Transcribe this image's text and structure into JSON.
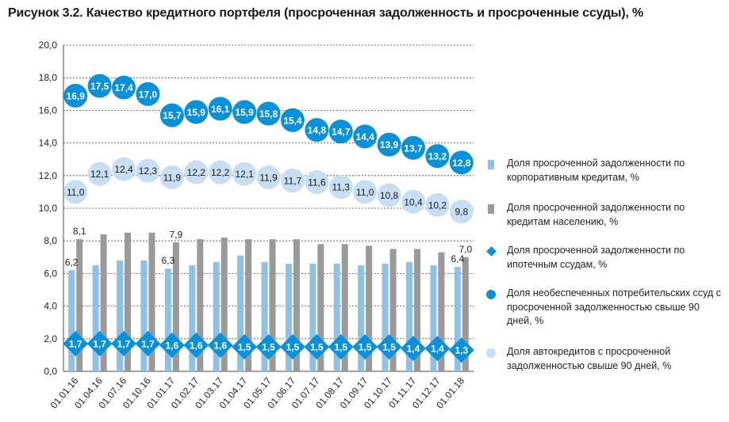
{
  "title": "Рисунок 3.2. Качество кредитного портфеля (просроченная задолженность и просроченные ссуды), %",
  "colors": {
    "corporate": "#8ec1e6",
    "retail": "#9a9a9a",
    "mortgage": "#0a91d9",
    "consumer": "#0a91d9",
    "auto": "#c8def2",
    "axis_text": "#222222",
    "grid": "#444444"
  },
  "legend": {
    "items": [
      {
        "label": "Доля просроченной задолженности по корпоративным кредитам, %",
        "marker": "bar",
        "color": "#8ec1e6"
      },
      {
        "label": "Доля просроченной задолженности по кредитам населению, %",
        "marker": "bar",
        "color": "#9a9a9a"
      },
      {
        "label": "Доля просроченной задолженности по ипотечным ссудам, %",
        "marker": "diamond",
        "color": "#0a91d9"
      },
      {
        "label": "Доля необеспеченных потребительских ссуд с просроченной задолженностью свыше 90 дней, %",
        "marker": "circle",
        "color": "#0a91d9"
      },
      {
        "label": "Доля автокредитов с просроченной задолженностью свыше 90 дней, %",
        "marker": "circle",
        "color": "#c8def2"
      }
    ]
  },
  "chart_data": {
    "type": "bar",
    "title": "Рисунок 3.2. Качество кредитного портфеля (просроченная задолженность и просроченные ссуды), %",
    "categories": [
      "01.01.16",
      "01.04.16",
      "01.07.16",
      "01.10.16",
      "01.01.17",
      "01.02.17",
      "01.03.17",
      "01.04.17",
      "01.05.17",
      "01.06.17",
      "01.07.17",
      "01.08.17",
      "01.09.17",
      "01.10.17",
      "01.11.17",
      "01.12.17",
      "01.01.18"
    ],
    "y_ticks": [
      "0,0",
      "2,0",
      "4,0",
      "6,0",
      "8,0",
      "10,0",
      "12,0",
      "14,0",
      "16,0",
      "18,0",
      "20,0"
    ],
    "ylim": [
      0,
      20
    ],
    "grid": true,
    "legend_position": "right",
    "series": [
      {
        "name": "Доля просроченной задолженности по корпоративным кредитам, %",
        "kind": "bar",
        "values": [
          6.2,
          6.5,
          6.8,
          6.8,
          6.3,
          6.5,
          6.7,
          7.1,
          6.7,
          6.6,
          6.6,
          6.6,
          6.5,
          6.6,
          6.7,
          6.5,
          6.4
        ],
        "labels": [
          "6,2",
          "",
          "",
          "",
          "6,3",
          "",
          "",
          "",
          "",
          "",
          "",
          "",
          "",
          "",
          "",
          "",
          "6,4"
        ]
      },
      {
        "name": "Доля просроченной задолженности по кредитам населению, %",
        "kind": "bar",
        "values": [
          8.1,
          8.4,
          8.5,
          8.5,
          7.9,
          8.1,
          8.2,
          8.1,
          8.1,
          8.1,
          7.8,
          7.8,
          7.7,
          7.5,
          7.5,
          7.3,
          7.0
        ],
        "labels": [
          "8,1",
          "",
          "",
          "",
          "7,9",
          "",
          "",
          "",
          "",
          "",
          "",
          "",
          "",
          "",
          "",
          "",
          "7,0"
        ]
      },
      {
        "name": "Доля просроченной задолженности по ипотечным ссудам, %",
        "kind": "diamond",
        "values": [
          1.7,
          1.7,
          1.7,
          1.7,
          1.6,
          1.6,
          1.6,
          1.5,
          1.5,
          1.5,
          1.5,
          1.5,
          1.5,
          1.5,
          1.4,
          1.4,
          1.3
        ],
        "labels": [
          "1,7",
          "1,7",
          "1,7",
          "1,7",
          "1,6",
          "1,6",
          "1,6",
          "1,5",
          "1,5",
          "1,5",
          "1,5",
          "1,5",
          "1,5",
          "1,5",
          "1,4",
          "1,4",
          "1,3"
        ]
      },
      {
        "name": "Доля необеспеченных потребительских ссуд с просроченной задолженностью свыше 90 дней, %",
        "kind": "circle",
        "values": [
          16.9,
          17.5,
          17.4,
          17.0,
          15.7,
          15.9,
          16.1,
          15.9,
          15.8,
          15.4,
          14.8,
          14.7,
          14.4,
          13.9,
          13.7,
          13.2,
          12.8
        ],
        "labels": [
          "16,9",
          "17,5",
          "17,4",
          "17,0",
          "15,7",
          "15,9",
          "16,1",
          "15,9",
          "15,8",
          "15,4",
          "14,8",
          "14,7",
          "14,4",
          "13,9",
          "13,7",
          "13,2",
          "12,8"
        ]
      },
      {
        "name": "Доля автокредитов с просроченной задолженностью свыше 90 дней, %",
        "kind": "circle",
        "values": [
          11.0,
          12.1,
          12.4,
          12.3,
          11.9,
          12.2,
          12.2,
          12.1,
          11.9,
          11.7,
          11.6,
          11.3,
          11.0,
          10.8,
          10.4,
          10.2,
          9.8
        ],
        "labels": [
          "11,0",
          "12,1",
          "12,4",
          "12,3",
          "11,9",
          "12,2",
          "12,2",
          "12,1",
          "11,9",
          "11,7",
          "11,6",
          "11,3",
          "11,0",
          "10,8",
          "10,4",
          "10,2",
          "9,8"
        ]
      }
    ]
  }
}
